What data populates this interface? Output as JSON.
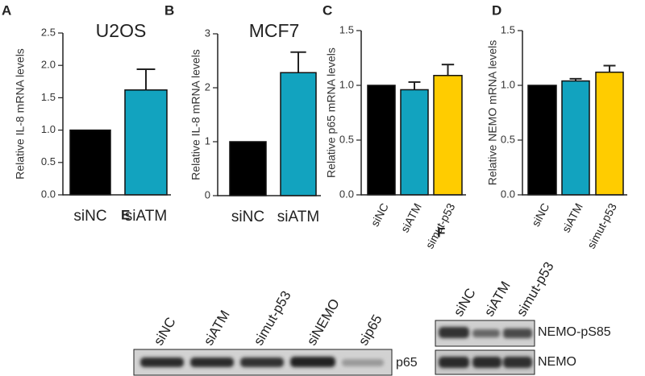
{
  "chart_data": [
    {
      "type": "bar",
      "panel": "A",
      "title": "U2OS",
      "ylabel": "Relative IL-8 mRNA levels",
      "categories": [
        "siNC",
        "siATM"
      ],
      "values": [
        1.0,
        1.62
      ],
      "errors": [
        null,
        0.32
      ],
      "colors": [
        "#000000",
        "#12a3bf"
      ],
      "ylim": [
        0,
        2.5
      ],
      "yticks": [
        {
          "value": 0,
          "label": "0.0"
        },
        0.5,
        {
          "value": 1,
          "label": "1.0"
        },
        1.5,
        {
          "value": 2,
          "label": "2.0"
        },
        2.5
      ]
    },
    {
      "type": "bar",
      "panel": "B",
      "title": "MCF7",
      "ylabel": "Relative IL-8 mRNA levels",
      "categories": [
        "siNC",
        "siATM"
      ],
      "values": [
        1.0,
        2.28
      ],
      "errors": [
        null,
        0.38
      ],
      "colors": [
        "#000000",
        "#12a3bf"
      ],
      "ylim": [
        0,
        3
      ],
      "yticks": [
        0,
        1,
        2,
        3
      ]
    },
    {
      "type": "bar",
      "panel": "C",
      "ylabel": "Relative p65 mRNA levels",
      "categories": [
        "siNC",
        "siATM",
        "simut-p53"
      ],
      "values": [
        1.0,
        0.96,
        1.09
      ],
      "errors": [
        null,
        0.07,
        0.1
      ],
      "colors": [
        "#000000",
        "#12a3bf",
        "#ffcc00"
      ],
      "ylim": [
        0,
        1.5
      ],
      "yticks": [
        {
          "value": 0,
          "label": "0.0"
        },
        0.5,
        {
          "value": 1,
          "label": "1.0"
        },
        1.5
      ]
    },
    {
      "type": "bar",
      "panel": "D",
      "ylabel": "Relative NEMO mRNA levels",
      "categories": [
        "siNC",
        "siATM",
        "simut-p53"
      ],
      "values": [
        1.0,
        1.04,
        1.12
      ],
      "errors": [
        null,
        0.02,
        0.06
      ],
      "colors": [
        "#000000",
        "#12a3bf",
        "#ffcc00"
      ],
      "ylim": [
        0,
        1.5
      ],
      "yticks": [
        {
          "value": 0,
          "label": "0.0"
        },
        0.5,
        {
          "value": 1,
          "label": "1.0"
        },
        1.5
      ]
    }
  ],
  "blots": [
    {
      "panel": "E",
      "lanes": [
        "siNC",
        "siATM",
        "simut-p53",
        "siNEMO",
        "sip65"
      ],
      "rows": [
        "p65"
      ]
    },
    {
      "panel": "F",
      "lanes": [
        "siNC",
        "siATM",
        "simut-p53"
      ],
      "rows": [
        "NEMO-pS85",
        "NEMO"
      ]
    }
  ]
}
